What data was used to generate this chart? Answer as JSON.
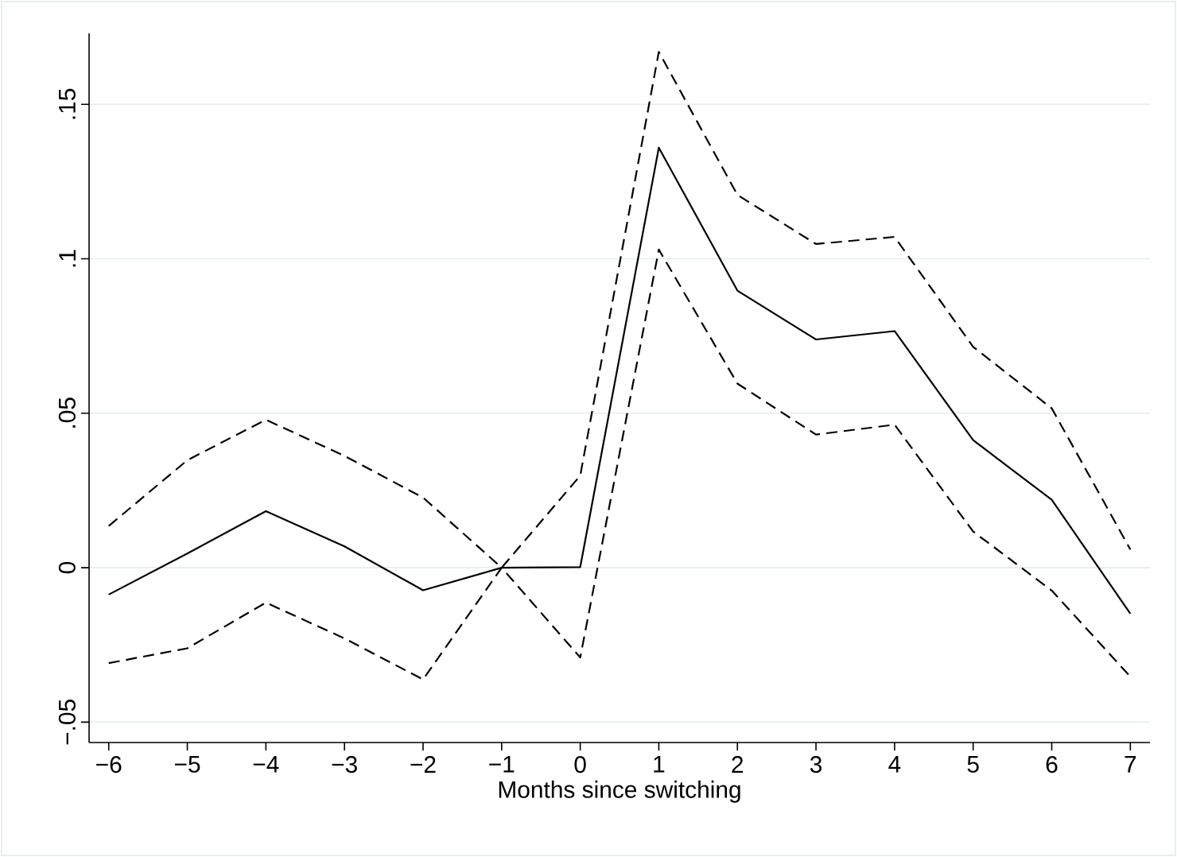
{
  "chart_data": {
    "type": "line",
    "xlabel": "Months since switching",
    "x": [
      -6,
      -5,
      -4,
      -3,
      -2,
      -1,
      0,
      1,
      2,
      3,
      4,
      5,
      6,
      7
    ],
    "series": [
      {
        "color": "#000000",
        "line_style": "solid",
        "values": [
          -0.0087,
          0.0046,
          0.0183,
          0.0069,
          -0.0073,
          0,
          0.0002,
          0.136,
          0.0897,
          0.0739,
          0.0766,
          0.0413,
          0.022,
          -0.0149
        ]
      },
      {
        "color": "#000000",
        "line_style": "dashed",
        "values": [
          0.0135,
          0.0348,
          0.0479,
          0.0362,
          0.0227,
          0,
          0.0298,
          0.167,
          0.1207,
          0.1048,
          0.1071,
          0.0715,
          0.0516,
          0.0059
        ]
      },
      {
        "color": "#000000",
        "line_style": "dashed",
        "values": [
          -0.0309,
          -0.0261,
          -0.0113,
          -0.0229,
          -0.0362,
          0,
          -0.0291,
          0.103,
          0.0596,
          0.0431,
          0.0463,
          0.0117,
          -0.0074,
          -0.0353
        ]
      }
    ],
    "xlim": [
      -6.25,
      7.25
    ],
    "ylim": [
      -0.0566,
      0.173
    ],
    "xticks": [
      {
        "value": -6,
        "label": "−6"
      },
      {
        "value": -5,
        "label": "−5"
      },
      {
        "value": -4,
        "label": "−4"
      },
      {
        "value": -3,
        "label": "−3"
      },
      {
        "value": -2,
        "label": "−2"
      },
      {
        "value": -1,
        "label": "−1"
      },
      0,
      1,
      2,
      3,
      4,
      5,
      6,
      7
    ],
    "yticks": [
      {
        "value": -0.05,
        "label": "−.05"
      },
      0,
      {
        "value": 0.05,
        "label": ".05"
      },
      {
        "value": 0.1,
        "label": ".1"
      },
      {
        "value": 0.15,
        "label": ".15"
      }
    ],
    "grid": "y"
  }
}
